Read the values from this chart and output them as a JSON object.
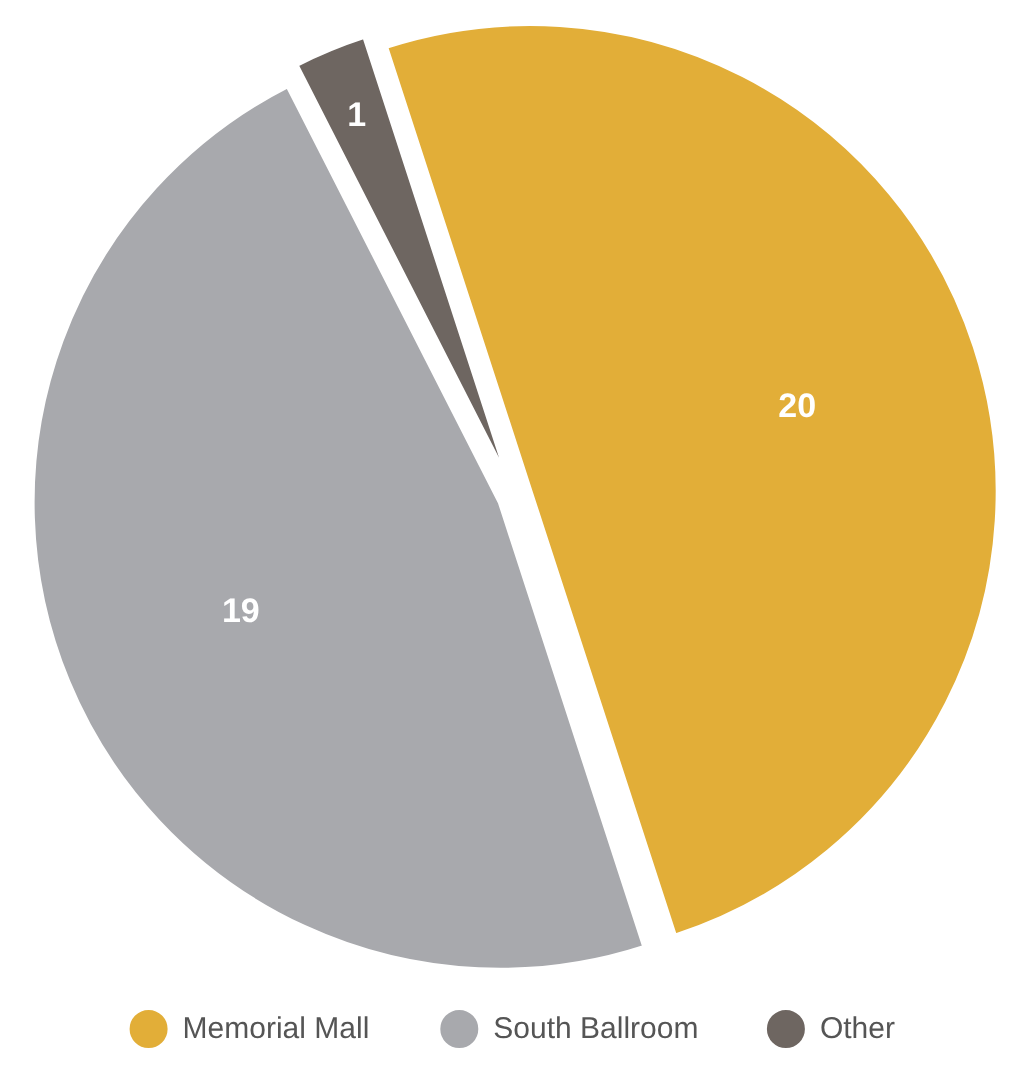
{
  "chart_data": {
    "type": "pie",
    "categories": [
      "Memorial Mall",
      "South Ballroom",
      "Other"
    ],
    "values": [
      20,
      19,
      1
    ],
    "colors": [
      "#e2ae38",
      "#a8a9ad",
      "#6e6661"
    ],
    "data_labels": true,
    "legend": "bottom"
  }
}
